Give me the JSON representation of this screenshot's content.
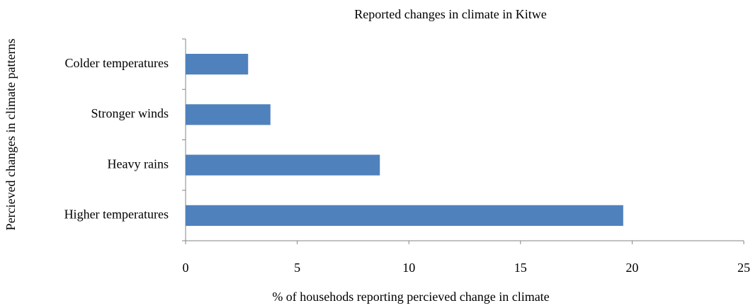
{
  "chart_data": {
    "type": "bar",
    "orientation": "horizontal",
    "title": "Reported changes in climate in Kitwe",
    "x_label": "% of househods reporting percieved change in climate",
    "y_label": "Percieved changes in climate patterns",
    "categories": [
      "Colder temperatures",
      "Stronger winds",
      "Heavy rains",
      "Higher temperatures"
    ],
    "values": [
      2.8,
      3.8,
      8.7,
      19.6
    ],
    "color": "#4f81bd",
    "xlim": [
      0,
      25
    ],
    "xticks": [
      0,
      5,
      10,
      15,
      20,
      25
    ],
    "grid": false
  }
}
